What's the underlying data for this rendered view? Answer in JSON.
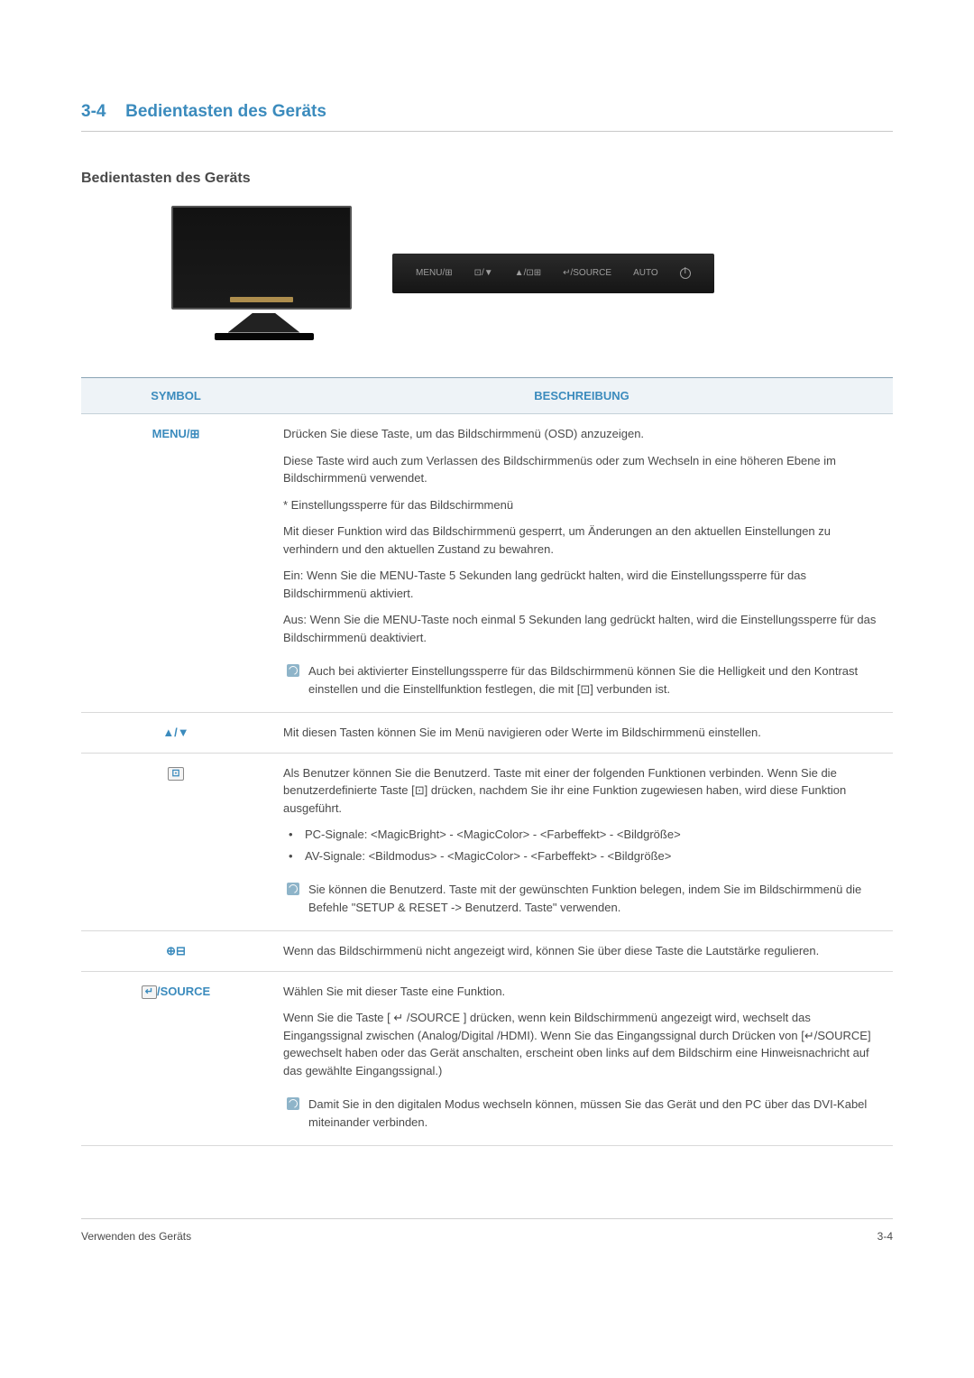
{
  "section": {
    "number": "3-4",
    "title": "Bedientasten des Geräts"
  },
  "subheading": "Bedientasten des Geräts",
  "button_bar": {
    "labels": [
      "MENU/⊞",
      "⊡/▼",
      "▲/⊡⊞",
      "↵/SOURCE",
      "AUTO"
    ],
    "background_gradient": [
      "#2a2a2a",
      "#151515"
    ],
    "text_color": "#9e9e9e"
  },
  "table": {
    "headers": {
      "symbol": "SYMBOL",
      "description": "BESCHREIBUNG"
    },
    "header_bg": "#eef3f7",
    "header_color": "#3b8bbd",
    "border_color": "#d9d9d9",
    "rows": [
      {
        "symbol": "MENU/⊞",
        "paras": [
          "Drücken Sie diese Taste, um das Bildschirmmenü (OSD) anzuzeigen.",
          "Diese Taste wird auch zum Verlassen des Bildschirmmenüs oder zum Wechseln in eine höheren Ebene im Bildschirmmenü verwendet.",
          "* Einstellungssperre für das Bildschirmmenü",
          "Mit dieser Funktion wird das Bildschirmmenü gesperrt, um Änderungen an den aktuellen Einstellungen zu verhindern und den aktuellen Zustand zu bewahren.",
          "Ein: Wenn Sie die MENU-Taste 5 Sekunden lang gedrückt halten, wird die Einstellungssperre für das Bildschirmmenü aktiviert.",
          "Aus: Wenn Sie die MENU-Taste noch einmal 5 Sekunden lang gedrückt halten, wird die Einstellungssperre für das Bildschirmmenü deaktiviert."
        ],
        "note": "Auch bei aktivierter Einstellungssperre für das Bildschirmmenü können Sie die Helligkeit und den Kontrast einstellen und die Einstellfunktion festlegen, die mit [⊡] verbunden ist."
      },
      {
        "symbol": "▲/▼",
        "paras": [
          "Mit diesen Tasten können Sie im Menü navigieren oder Werte im Bildschirmmenü einstellen."
        ]
      },
      {
        "symbol": "⊡",
        "paras": [
          "Als Benutzer können Sie die Benutzerd. Taste mit einer der folgenden Funktionen verbinden. Wenn Sie die benutzerdefinierte Taste [⊡] drücken, nachdem Sie ihr eine Funktion zugewiesen haben, wird diese Funktion ausgeführt."
        ],
        "bullets": [
          "PC-Signale: <MagicBright> - <MagicColor> - <Farbeffekt> - <Bildgröße>",
          "AV-Signale: <Bildmodus> - <MagicColor> - <Farbeffekt> - <Bildgröße>"
        ],
        "note": "Sie können die Benutzerd. Taste mit der gewünschten Funktion belegen, indem Sie im Bildschirmmenü die Befehle \"SETUP & RESET -> Benutzerd. Taste\" verwenden."
      },
      {
        "symbol": "⊕⊟",
        "paras": [
          "Wenn das Bildschirmmenü nicht angezeigt wird, können Sie über diese Taste die Lautstärke regulieren."
        ]
      },
      {
        "symbol": "↵/SOURCE",
        "paras": [
          "Wählen Sie mit dieser Taste eine Funktion.",
          "Wenn Sie die Taste [ ↵ /SOURCE ] drücken, wenn kein Bildschirmmenü angezeigt wird, wechselt das Eingangssignal zwischen (Analog/Digital /HDMI). Wenn Sie das Eingangssignal durch Drücken von [↵/SOURCE] gewechselt haben oder das Gerät anschalten, erscheint oben links auf dem Bildschirm eine Hinweisnachricht auf das gewählte Eingangssignal.)"
        ],
        "note": "Damit Sie in den digitalen Modus wechseln können, müssen Sie das Gerät und den PC über das DVI-Kabel miteinander verbinden."
      }
    ]
  },
  "footer": {
    "left": "Verwenden des Geräts",
    "right": "3-4"
  },
  "colors": {
    "accent": "#3b8bbd",
    "text": "#4a4a4a",
    "rule": "#c8c8c8",
    "note_icon_bg": "#8eb4c9"
  }
}
